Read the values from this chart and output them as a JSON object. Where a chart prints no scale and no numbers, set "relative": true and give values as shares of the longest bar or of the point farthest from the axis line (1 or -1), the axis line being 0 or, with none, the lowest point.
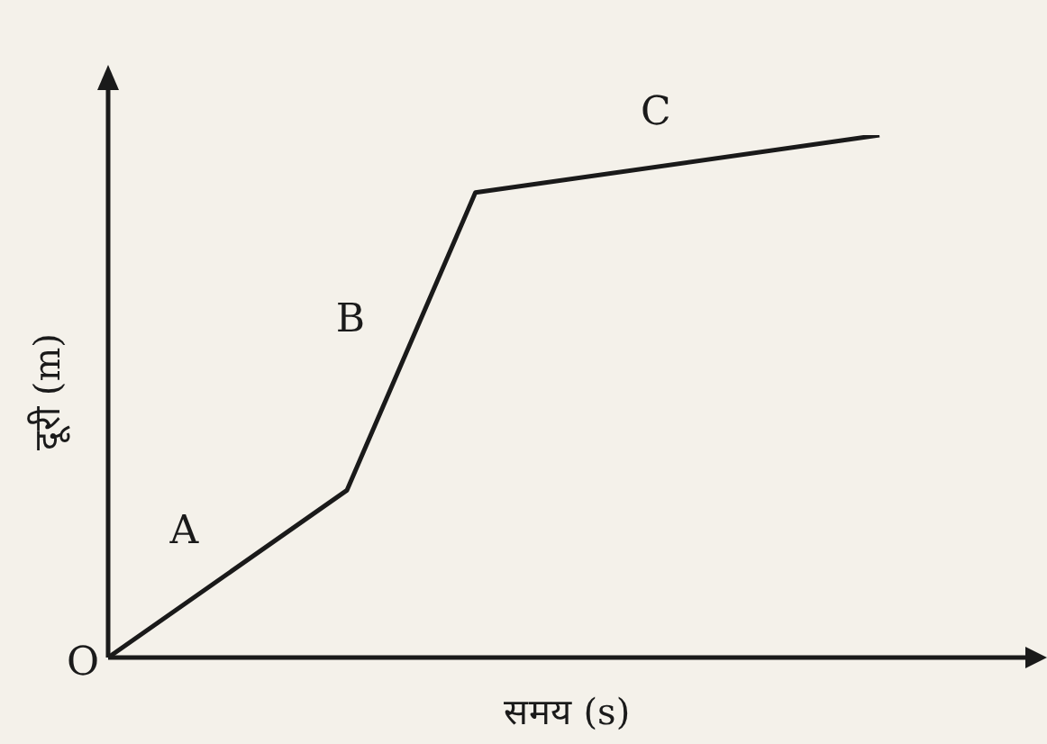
{
  "chart_data": {
    "type": "line",
    "relative": true,
    "xlabel": "समय (s)",
    "ylabel": "दूरी (m)",
    "categories": [
      null,
      null,
      null,
      null,
      null,
      null,
      null,
      null,
      null,
      null,
      null,
      null,
      null,
      null,
      null,
      null,
      null,
      null,
      null,
      null,
      null,
      null,
      null,
      null,
      null,
      null,
      null,
      null,
      null,
      null,
      null,
      null,
      null,
      null,
      null,
      null,
      null,
      null,
      null,
      null,
      null,
      null,
      null
    ],
    "series": [
      {
        "color": "#1a1a1a",
        "values": [
          0,
          null,
          null,
          null,
          null,
          null,
          null,
          null,
          null,
          null,
          null,
          null,
          null,
          0.32,
          null,
          null,
          null,
          null,
          null,
          null,
          0.89,
          null,
          null,
          null,
          null,
          null,
          null,
          null,
          null,
          null,
          null,
          null,
          null,
          null,
          null,
          null,
          null,
          null,
          null,
          null,
          null,
          null,
          1
        ]
      }
    ],
    "marker": "none",
    "line_style": "solid",
    "annotations": [
      "A",
      "B",
      "C",
      "O"
    ]
  }
}
